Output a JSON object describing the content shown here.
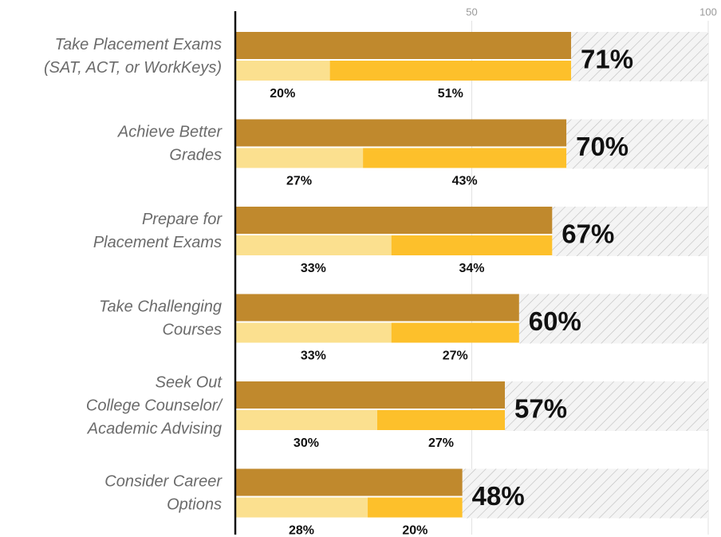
{
  "chart_data": {
    "type": "bar",
    "orientation": "horizontal",
    "categories": [
      [
        "Take Placement Exams",
        "(SAT, ACT, or WorkKeys)"
      ],
      [
        "Achieve Better",
        "Grades"
      ],
      [
        "Prepare for",
        "Placement Exams"
      ],
      [
        "Take Challenging",
        "Courses"
      ],
      [
        "Seek Out",
        "College Counselor/",
        "Academic Advising"
      ],
      [
        "Consider Career",
        "Options"
      ]
    ],
    "totals": {
      "color": "#c0892d",
      "values": [
        71,
        70,
        67,
        60,
        57,
        48
      ],
      "value_labels": [
        "71%",
        "70%",
        "67%",
        "60%",
        "57%",
        "48%"
      ]
    },
    "series": [
      {
        "color": "#fbe08f",
        "values": [
          20,
          27,
          33,
          33,
          30,
          28
        ],
        "value_labels": [
          "20%",
          "27%",
          "33%",
          "33%",
          "30%",
          "28%"
        ]
      },
      {
        "color": "#fdc02b",
        "values": [
          51,
          43,
          34,
          27,
          27,
          20
        ],
        "value_labels": [
          "51%",
          "43%",
          "34%",
          "27%",
          "27%",
          "20%"
        ]
      }
    ],
    "xlim": [
      0,
      100
    ],
    "xticks": [
      50,
      100
    ],
    "grid": true
  }
}
